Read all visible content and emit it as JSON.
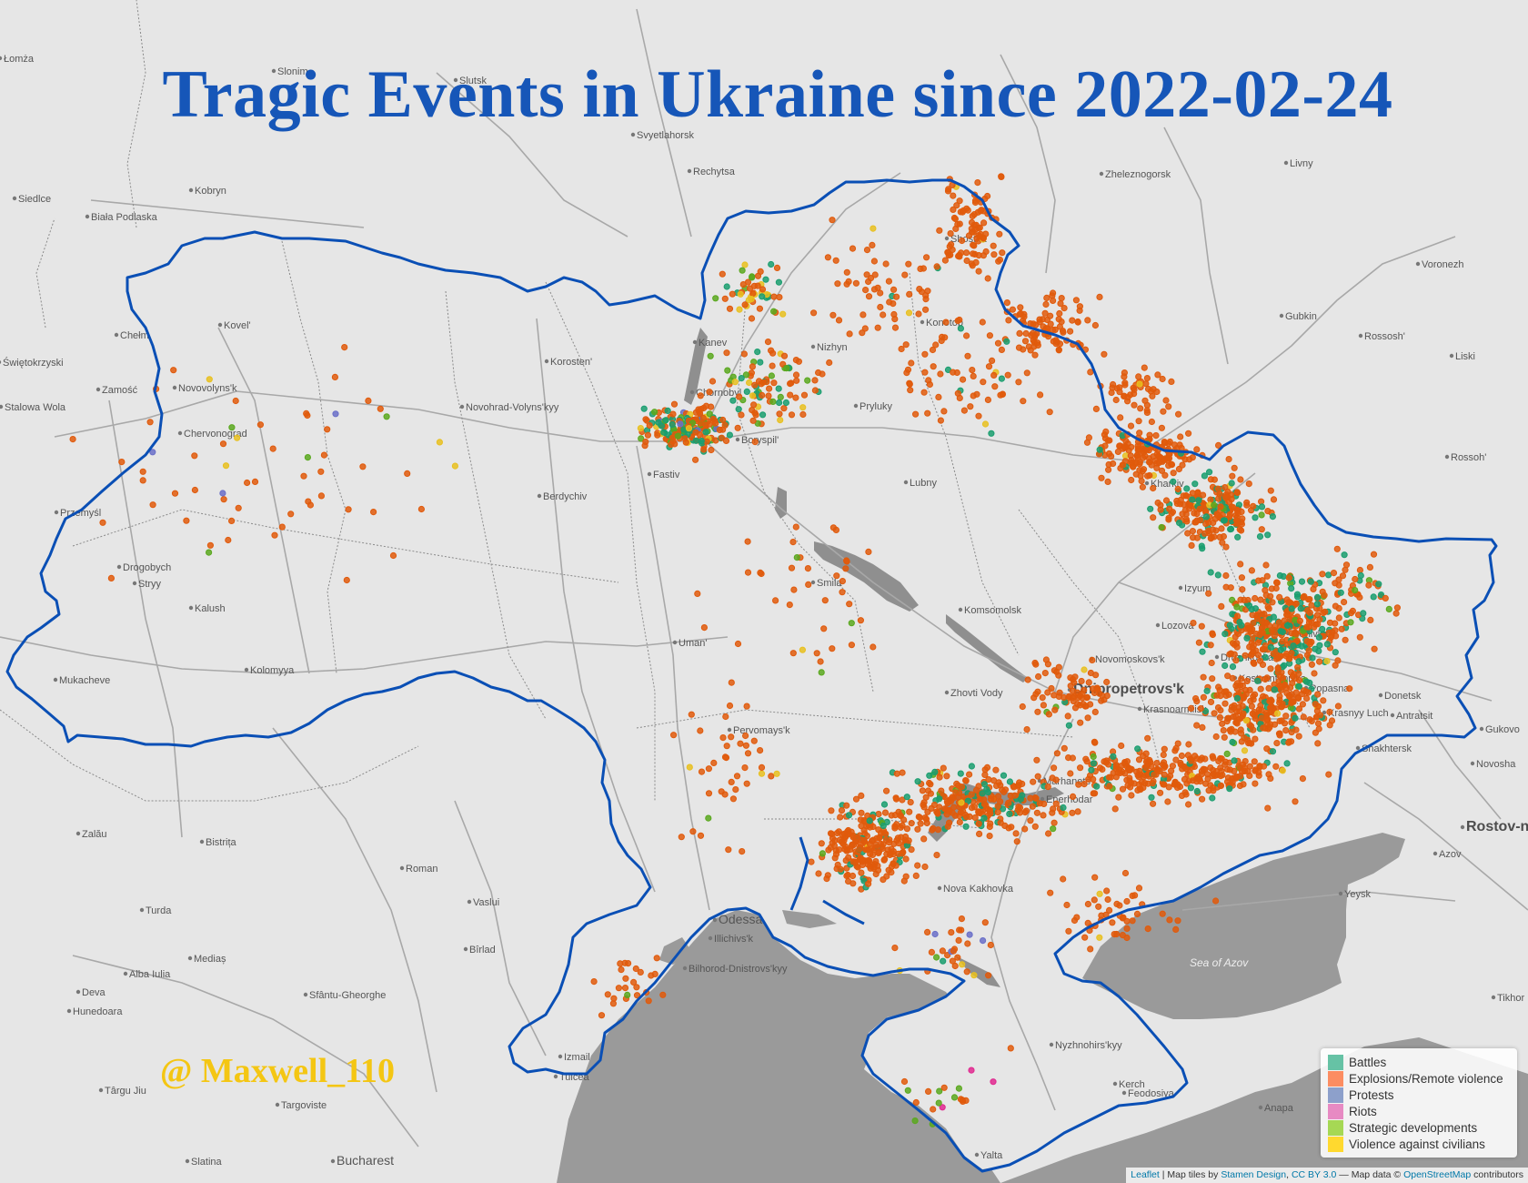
{
  "title": "Tragic Events in Ukraine since 2022-02-24",
  "watermark": "@ Maxwell_110",
  "colors": {
    "border": "#0a4fb5",
    "land": "#e6e6e6",
    "water": "#999999",
    "title": "#1656b8",
    "watermark": "#f4c613"
  },
  "legend": [
    {
      "label": "Battles",
      "color": "#66c2a5",
      "marker": "#1a9e6f"
    },
    {
      "label": "Explosions/Remote violence",
      "color": "#fc8d62",
      "marker": "#e05a0c"
    },
    {
      "label": "Protests",
      "color": "#8da0cb",
      "marker": "#6a6fc8"
    },
    {
      "label": "Riots",
      "color": "#e78ac3",
      "marker": "#e0288f"
    },
    {
      "label": "Strategic developments",
      "color": "#a6d854",
      "marker": "#5aa81e"
    },
    {
      "label": "Violence against civilians",
      "color": "#ffd92f",
      "marker": "#e8c020"
    }
  ],
  "attribution": {
    "leaflet": "Leaflet",
    "sep1": " | Map tiles by ",
    "stamen": "Stamen Design",
    "sep2": ", ",
    "license": "CC BY 3.0",
    "sep3": " — Map data © ",
    "osm": "OpenStreetMap",
    "sep4": " contributors"
  },
  "places": [
    {
      "name": "Łomża",
      "cls": ""
    },
    {
      "name": "Slonim",
      "cls": ""
    },
    {
      "name": "Slutsk",
      "cls": ""
    },
    {
      "name": "Svyetlahorsk",
      "cls": ""
    },
    {
      "name": "Rechytsa",
      "cls": ""
    },
    {
      "name": "Livny",
      "cls": ""
    },
    {
      "name": "Zheleznogorsk",
      "cls": ""
    },
    {
      "name": "Siedlce",
      "cls": ""
    },
    {
      "name": "Biała Podlaska",
      "cls": ""
    },
    {
      "name": "Kobryn",
      "cls": ""
    },
    {
      "name": "Voronezh",
      "cls": ""
    },
    {
      "name": "Shostka",
      "cls": ""
    },
    {
      "name": "Gubkin",
      "cls": ""
    },
    {
      "name": "Rossosh'",
      "cls": ""
    },
    {
      "name": "Liski",
      "cls": ""
    },
    {
      "name": "Kovel'",
      "cls": ""
    },
    {
      "name": "Chełm",
      "cls": ""
    },
    {
      "name": "Konotop",
      "cls": ""
    },
    {
      "name": "Świętokrzyski",
      "cls": ""
    },
    {
      "name": "Korosten'",
      "cls": ""
    },
    {
      "name": "Nizhyn",
      "cls": ""
    },
    {
      "name": "Zamość",
      "cls": ""
    },
    {
      "name": "Novovolyns'k",
      "cls": ""
    },
    {
      "name": "Stalowa Wola",
      "cls": ""
    },
    {
      "name": "Novohrad-Volyns'kyy",
      "cls": ""
    },
    {
      "name": "Pryluky",
      "cls": ""
    },
    {
      "name": "Chervonograd",
      "cls": ""
    },
    {
      "name": "Boryspil'",
      "cls": ""
    },
    {
      "name": "Rossoh'",
      "cls": ""
    },
    {
      "name": "Fastiv",
      "cls": ""
    },
    {
      "name": "Lubny",
      "cls": ""
    },
    {
      "name": "Berdychiv",
      "cls": ""
    },
    {
      "name": "Przemyśl",
      "cls": ""
    },
    {
      "name": "Drogobych",
      "cls": ""
    },
    {
      "name": "Stryy",
      "cls": ""
    },
    {
      "name": "Smila",
      "cls": ""
    },
    {
      "name": "Kalush",
      "cls": ""
    },
    {
      "name": "Komsomolsk",
      "cls": ""
    },
    {
      "name": "Lozova",
      "cls": ""
    },
    {
      "name": "Uman'",
      "cls": ""
    },
    {
      "name": "Mukacheve",
      "cls": ""
    },
    {
      "name": "Kolomyya",
      "cls": ""
    },
    {
      "name": "Novomoskovs'k",
      "cls": ""
    },
    {
      "name": "Druzhkovka",
      "cls": ""
    },
    {
      "name": "Kostyantynivka",
      "cls": ""
    },
    {
      "name": "Donetsk",
      "cls": ""
    },
    {
      "name": "Zhovti Vody",
      "cls": ""
    },
    {
      "name": "Dnipropetrovs'k",
      "cls": "big"
    },
    {
      "name": "Krasnoarmiisk",
      "cls": ""
    },
    {
      "name": "Krasnyy Luch",
      "cls": ""
    },
    {
      "name": "Antratsit",
      "cls": ""
    },
    {
      "name": "Pervomays'k",
      "cls": ""
    },
    {
      "name": "Gukovo",
      "cls": ""
    },
    {
      "name": "Shakhtersk",
      "cls": ""
    },
    {
      "name": "Novosha",
      "cls": ""
    },
    {
      "name": "Rostov-n",
      "cls": "big"
    },
    {
      "name": "Marhanets",
      "cls": ""
    },
    {
      "name": "Enerhodar",
      "cls": ""
    },
    {
      "name": "Zalău",
      "cls": ""
    },
    {
      "name": "Bistrița",
      "cls": ""
    },
    {
      "name": "Azov",
      "cls": ""
    },
    {
      "name": "Roman",
      "cls": ""
    },
    {
      "name": "Nova Kakhovka",
      "cls": ""
    },
    {
      "name": "Yeysk",
      "cls": ""
    },
    {
      "name": "Turda",
      "cls": ""
    },
    {
      "name": "Vaslui",
      "cls": ""
    },
    {
      "name": "Odessa",
      "cls": "mid"
    },
    {
      "name": "Illichivs'k",
      "cls": ""
    },
    {
      "name": "Bilhorod-Dnistrovs'kyy",
      "cls": ""
    },
    {
      "name": "Alba Iulia",
      "cls": ""
    },
    {
      "name": "Mediaș",
      "cls": ""
    },
    {
      "name": "Bîrlad",
      "cls": ""
    },
    {
      "name": "Deva",
      "cls": ""
    },
    {
      "name": "Hunedoara",
      "cls": ""
    },
    {
      "name": "Sfântu-Gheorghe",
      "cls": ""
    },
    {
      "name": "Tikhor",
      "cls": ""
    },
    {
      "name": "Nyzhnohirs'kyy",
      "cls": ""
    },
    {
      "name": "Izmail",
      "cls": ""
    },
    {
      "name": "Tulcea",
      "cls": ""
    },
    {
      "name": "Târgu Jiu",
      "cls": ""
    },
    {
      "name": "Targoviste",
      "cls": ""
    },
    {
      "name": "Anapa",
      "cls": ""
    },
    {
      "name": "Feodosiya",
      "cls": ""
    },
    {
      "name": "Slatina",
      "cls": ""
    },
    {
      "name": "Bucharest",
      "cls": "mid"
    },
    {
      "name": "Yalta",
      "cls": ""
    },
    {
      "name": "Kanev",
      "cls": ""
    },
    {
      "name": "Chornobyl",
      "cls": ""
    },
    {
      "name": "Izyum",
      "cls": ""
    },
    {
      "name": "Popasna",
      "cls": ""
    },
    {
      "name": "Gorlivka",
      "cls": ""
    },
    {
      "name": "Kerch",
      "cls": ""
    },
    {
      "name": "Kharkiv",
      "cls": ""
    }
  ],
  "seas": [
    "Sea of Azov"
  ]
}
